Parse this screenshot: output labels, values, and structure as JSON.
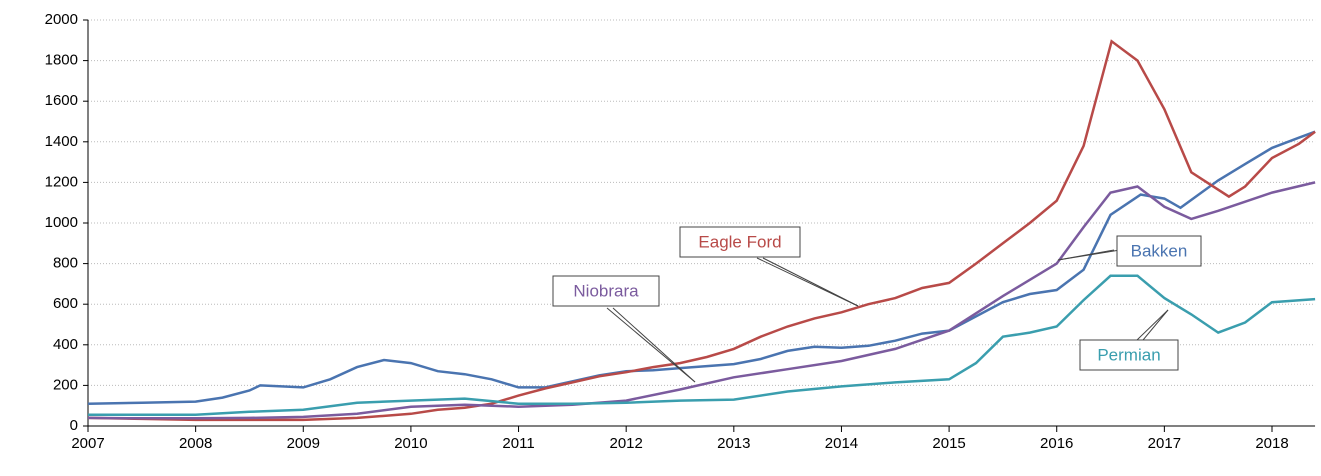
{
  "chart_data": {
    "type": "line",
    "xlim": [
      2007,
      2018.4
    ],
    "xticks": [
      2007,
      2008,
      2009,
      2010,
      2011,
      2012,
      2013,
      2014,
      2015,
      2016,
      2017,
      2018
    ],
    "ylim": [
      0,
      2000
    ],
    "yticks": [
      0,
      200,
      400,
      600,
      800,
      1000,
      1200,
      1400,
      1600,
      1800,
      2000
    ],
    "grid": true,
    "series": [
      {
        "name": "Bakken",
        "color": "#4a74b0",
        "x": [
          2007,
          2007.5,
          2008,
          2008.25,
          2008.5,
          2008.6,
          2009,
          2009.25,
          2009.5,
          2009.75,
          2010,
          2010.25,
          2010.5,
          2010.75,
          2011,
          2011.25,
          2011.5,
          2011.75,
          2012,
          2012.25,
          2012.5,
          2012.75,
          2013,
          2013.25,
          2013.5,
          2013.75,
          2014,
          2014.25,
          2014.5,
          2014.75,
          2015,
          2015.25,
          2015.5,
          2015.75,
          2016,
          2016.25,
          2016.5,
          2016.78,
          2017,
          2017.15,
          2017.5,
          2017.75,
          2018,
          2018.25,
          2018.4
        ],
        "values": [
          110,
          115,
          120,
          140,
          175,
          200,
          190,
          230,
          290,
          325,
          310,
          270,
          255,
          230,
          190,
          190,
          220,
          250,
          270,
          275,
          285,
          295,
          305,
          330,
          370,
          390,
          385,
          395,
          420,
          455,
          470,
          540,
          610,
          650,
          670,
          770,
          1040,
          1140,
          1120,
          1075,
          1210,
          1290,
          1370,
          1420,
          1450
        ]
      },
      {
        "name": "Eagle Ford",
        "color": "#b84a48",
        "x": [
          2007,
          2007.5,
          2008,
          2008.5,
          2009,
          2009.5,
          2010,
          2010.25,
          2010.5,
          2010.75,
          2011,
          2011.25,
          2011.5,
          2011.75,
          2012,
          2012.25,
          2012.5,
          2012.75,
          2013,
          2013.25,
          2013.5,
          2013.75,
          2014,
          2014.25,
          2014.5,
          2014.75,
          2015,
          2015.25,
          2015.5,
          2015.75,
          2016,
          2016.25,
          2016.51,
          2016.75,
          2017,
          2017.25,
          2017.6,
          2017.75,
          2018,
          2018.25,
          2018.4
        ],
        "values": [
          40,
          35,
          30,
          30,
          30,
          40,
          60,
          80,
          90,
          110,
          150,
          185,
          215,
          245,
          265,
          290,
          310,
          340,
          380,
          440,
          490,
          530,
          560,
          600,
          630,
          680,
          705,
          800,
          900,
          1000,
          1110,
          1380,
          1895,
          1800,
          1560,
          1250,
          1130,
          1180,
          1320,
          1390,
          1450
        ]
      },
      {
        "name": "Niobrara",
        "color": "#7b5b9e",
        "x": [
          2007,
          2007.5,
          2008,
          2008.5,
          2009,
          2009.5,
          2010,
          2010.5,
          2011,
          2011.5,
          2012,
          2012.5,
          2013,
          2013.5,
          2014,
          2014.5,
          2015,
          2015.5,
          2016,
          2016.25,
          2016.5,
          2016.75,
          2017,
          2017.25,
          2017.5,
          2018,
          2018.4
        ],
        "values": [
          40,
          38,
          38,
          40,
          45,
          60,
          95,
          105,
          95,
          105,
          125,
          180,
          240,
          280,
          320,
          380,
          470,
          640,
          800,
          980,
          1150,
          1180,
          1080,
          1020,
          1060,
          1150,
          1200
        ]
      },
      {
        "name": "Permian",
        "color": "#3a9eae",
        "x": [
          2007,
          2008,
          2008.5,
          2009,
          2009.5,
          2010,
          2010.5,
          2011,
          2011.5,
          2012,
          2012.5,
          2013,
          2013.5,
          2014,
          2014.5,
          2015,
          2015.25,
          2015.5,
          2015.75,
          2016,
          2016.25,
          2016.5,
          2016.75,
          2017,
          2017.25,
          2017.5,
          2017.75,
          2018,
          2018.4
        ],
        "values": [
          55,
          55,
          70,
          80,
          115,
          125,
          135,
          110,
          110,
          115,
          125,
          130,
          170,
          195,
          215,
          230,
          310,
          440,
          460,
          490,
          620,
          740,
          740,
          630,
          550,
          460,
          510,
          610,
          625
        ]
      }
    ]
  }
}
